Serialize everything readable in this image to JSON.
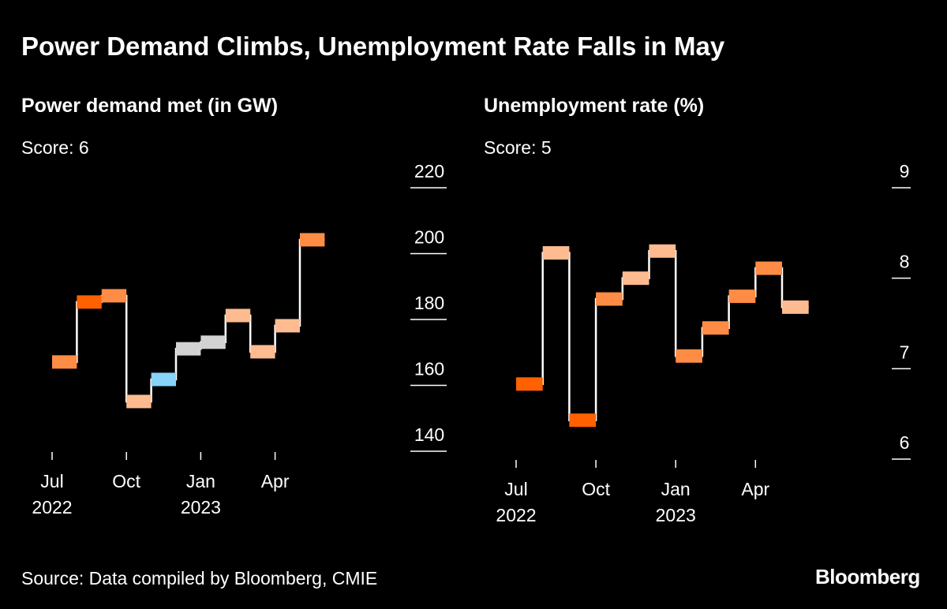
{
  "title": "Power Demand Climbs, Unemployment Rate Falls in May",
  "source": "Source: Data compiled by Bloomberg, CMIE",
  "logo": "Bloomberg",
  "colors": {
    "score_dark_orange": "#ff6000",
    "score_orange": "#ff8c45",
    "score_light_orange": "#ffbb90",
    "score_blue": "#86d4f8",
    "score_gray": "#d3d3d3",
    "line": "#ffffff",
    "background": "#000000"
  },
  "chart_data": [
    {
      "type": "step",
      "title": "Power demand met (in GW)",
      "score_label": "Score: 6",
      "months": [
        "Jul 2022",
        "Aug 2022",
        "Sep 2022",
        "Oct 2022",
        "Nov 2022",
        "Dec 2022",
        "Jan 2023",
        "Feb 2023",
        "Mar 2023",
        "Apr 2023",
        "May 2023"
      ],
      "values": [
        167.1,
        185.3,
        187.2,
        155.1,
        161.8,
        171.1,
        173.1,
        181.2,
        170.2,
        178.1,
        204.2
      ],
      "bar_colors": [
        "score_orange",
        "score_dark_orange",
        "score_orange",
        "score_light_orange",
        "score_blue",
        "score_gray",
        "score_gray",
        "score_light_orange",
        "score_light_orange",
        "score_light_orange",
        "score_orange"
      ],
      "ylim": [
        140,
        220
      ],
      "yticks": [
        "140",
        "160",
        "180",
        "200",
        "220"
      ],
      "xticks": [
        {
          "label": "Jul",
          "sub": "2022",
          "index": 0
        },
        {
          "label": "Oct",
          "index": 3
        },
        {
          "label": "Jan",
          "sub": "2023",
          "index": 6
        },
        {
          "label": "Apr",
          "index": 9
        }
      ],
      "y_axis_side": "right"
    },
    {
      "type": "step",
      "title": "Unemployment rate (%)",
      "score_label": "Score: 5",
      "months": [
        "Jul 2022",
        "Aug 2022",
        "Sep 2022",
        "Oct 2022",
        "Nov 2022",
        "Dec 2022",
        "Jan 2023",
        "Feb 2023",
        "Mar 2023",
        "Apr 2023",
        "May 2023"
      ],
      "values": [
        6.83,
        8.28,
        6.43,
        7.77,
        8.0,
        8.3,
        7.14,
        7.45,
        7.8,
        8.11,
        7.68
      ],
      "bar_colors": [
        "score_dark_orange",
        "score_light_orange",
        "score_dark_orange",
        "score_orange",
        "score_light_orange",
        "score_light_orange",
        "score_orange",
        "score_orange",
        "score_orange",
        "score_orange",
        "score_light_orange"
      ],
      "ylim": [
        6,
        9
      ],
      "yticks": [
        "6",
        "7",
        "8",
        "9"
      ],
      "xticks": [
        {
          "label": "Jul",
          "sub": "2022",
          "index": 0
        },
        {
          "label": "Oct",
          "index": 3
        },
        {
          "label": "Jan",
          "sub": "2023",
          "index": 6
        },
        {
          "label": "Apr",
          "index": 9
        }
      ],
      "y_axis_side": "right"
    }
  ]
}
